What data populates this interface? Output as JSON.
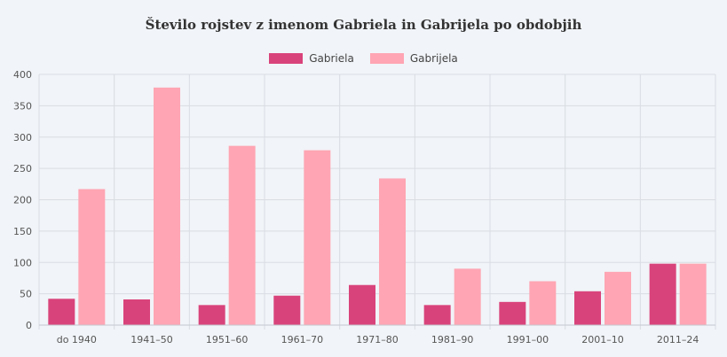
{
  "chart_data": {
    "type": "bar",
    "title": "Število rojstev z imenom Gabriela in Gabrijela po obdobjih",
    "xlabel": "",
    "ylabel": "",
    "categories": [
      "do 1940",
      "1941–50",
      "1951–60",
      "1961–70",
      "1971–80",
      "1981–90",
      "1991–00",
      "2001–10",
      "2011–24"
    ],
    "series": [
      {
        "name": "Gabriela",
        "color": "#d9437b",
        "values": [
          42,
          41,
          32,
          47,
          64,
          32,
          37,
          54,
          98
        ]
      },
      {
        "name": "Gabrijela",
        "color": "#ffa5b3",
        "values": [
          217,
          379,
          286,
          279,
          234,
          90,
          70,
          85,
          98
        ]
      }
    ],
    "ylim": [
      0,
      400
    ],
    "yticks": [
      0,
      50,
      100,
      150,
      200,
      250,
      300,
      350,
      400
    ],
    "grid": true,
    "legend_position": "top"
  }
}
